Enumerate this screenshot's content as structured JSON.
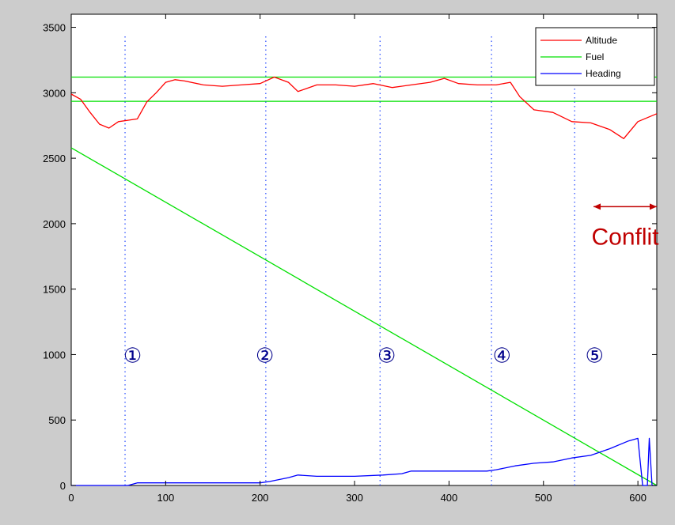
{
  "colors": {
    "figure_bg": "#cccccc",
    "axes_bg": "#ffffff",
    "altitude": "#ff0000",
    "fuel": "#00e000",
    "heading": "#0000ff",
    "marker_lines": "#3355ff",
    "markers": "#00008b",
    "conflict": "#c00000"
  },
  "chart_data": {
    "type": "line",
    "title": "",
    "xlabel": "",
    "ylabel": "",
    "xlim": [
      0,
      620
    ],
    "ylim": [
      0,
      3600
    ],
    "xticks": [
      0,
      100,
      200,
      300,
      400,
      500,
      600
    ],
    "yticks": [
      0,
      500,
      1000,
      1500,
      2000,
      2500,
      3000,
      3500
    ],
    "xtick_labels": [
      "0",
      "100",
      "200",
      "300",
      "400",
      "500",
      "600"
    ],
    "ytick_labels": [
      "0",
      "500",
      "1000",
      "1500",
      "2000",
      "2500",
      "3000",
      "3500"
    ],
    "grid": false,
    "legend": {
      "position": "top-right",
      "entries": [
        "Altitude",
        "Fuel",
        "Heading"
      ]
    },
    "series": [
      {
        "name": "Altitude",
        "x": [
          0,
          10,
          20,
          30,
          40,
          50,
          60,
          70,
          80,
          90,
          100,
          110,
          120,
          140,
          160,
          180,
          200,
          215,
          230,
          240,
          260,
          280,
          300,
          320,
          340,
          360,
          380,
          395,
          410,
          430,
          450,
          465,
          475,
          490,
          510,
          530,
          550,
          570,
          585,
          600,
          620
        ],
        "y": [
          2990,
          2950,
          2850,
          2760,
          2730,
          2780,
          2790,
          2800,
          2930,
          3000,
          3080,
          3100,
          3090,
          3060,
          3050,
          3060,
          3070,
          3120,
          3080,
          3010,
          3060,
          3060,
          3050,
          3070,
          3040,
          3060,
          3080,
          3110,
          3070,
          3060,
          3060,
          3080,
          2970,
          2870,
          2850,
          2780,
          2770,
          2720,
          2650,
          2780,
          2840
        ]
      },
      {
        "name": "Fuel",
        "x": [
          0,
          620
        ],
        "y": [
          2580,
          0
        ]
      },
      {
        "name": "Heading",
        "x": [
          0,
          60,
          70,
          100,
          200,
          210,
          230,
          240,
          260,
          300,
          330,
          350,
          360,
          440,
          450,
          470,
          490,
          510,
          530,
          550,
          570,
          590,
          600,
          605,
          610,
          612,
          615,
          618,
          620
        ],
        "y": [
          0,
          0,
          20,
          20,
          20,
          30,
          60,
          80,
          70,
          70,
          80,
          90,
          110,
          110,
          120,
          150,
          170,
          180,
          210,
          230,
          280,
          340,
          360,
          0,
          0,
          360,
          0,
          0,
          0
        ]
      }
    ],
    "reference_lines": {
      "horizontal": [
        3120,
        2935
      ],
      "vertical": [
        57,
        206,
        327,
        445,
        533
      ]
    },
    "markers": [
      {
        "label": "①",
        "x": 65,
        "y": 1000
      },
      {
        "label": "②",
        "x": 205,
        "y": 1000
      },
      {
        "label": "③",
        "x": 334,
        "y": 1000
      },
      {
        "label": "④",
        "x": 456,
        "y": 1000
      },
      {
        "label": "⑤",
        "x": 554,
        "y": 1000
      }
    ],
    "annotation": {
      "text": "Conflit",
      "x_start": 553,
      "x_end": 620,
      "arrow_y": 2130,
      "text_y": 1840
    }
  }
}
